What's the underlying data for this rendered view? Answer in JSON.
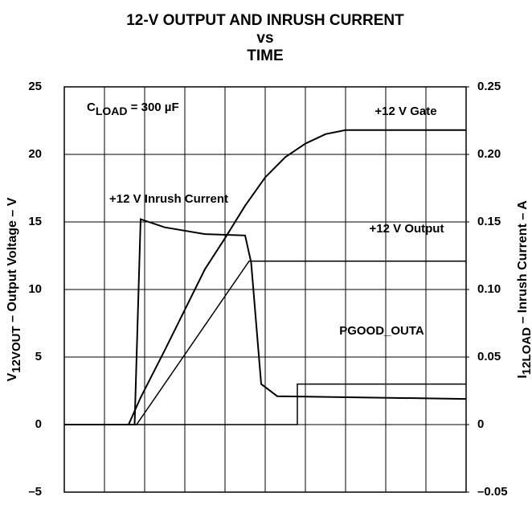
{
  "chart_data": {
    "type": "line",
    "title": [
      "12-V OUTPUT AND INRUSH CURRENT",
      "vs",
      "TIME"
    ],
    "y_label": {
      "main": "V",
      "sub": "12VOUT",
      "rest": " – Output Voltage – V"
    },
    "y2_label": {
      "main": "I",
      "sub": "12LOAD",
      "rest": " – Inrush Current – A"
    },
    "xlim": [
      0,
      10
    ],
    "xticks": [
      0,
      1,
      2,
      3,
      4,
      5,
      6,
      7,
      8,
      9,
      10
    ],
    "ylim": [
      -5,
      25
    ],
    "yticks": [
      {
        "value": -5,
        "label": "–5"
      },
      0,
      5,
      10,
      15,
      20,
      25
    ],
    "y2lim": [
      -0.05,
      0.25
    ],
    "y2ticks": [
      {
        "value": -0.05,
        "label": "–0.05"
      },
      0,
      0.05,
      {
        "value": 0.1,
        "label": "0.10"
      },
      0.15,
      {
        "value": 0.2,
        "label": "0.20"
      },
      0.25
    ],
    "grid": true,
    "series": [
      {
        "name": "+12 V Gate",
        "color": "#000000",
        "axis": "y",
        "x": [
          0,
          1.6,
          1.9,
          2.5,
          3,
          3.5,
          4,
          4.5,
          5,
          5.5,
          6,
          6.5,
          7,
          10
        ],
        "values": [
          0,
          0,
          2,
          5.5,
          8.5,
          11.5,
          13.8,
          16.2,
          18.3,
          19.8,
          20.8,
          21.5,
          21.8,
          21.8
        ]
      },
      {
        "name": "+12 V Output",
        "color": "#000000",
        "axis": "y",
        "x": [
          0,
          1.8,
          4.6,
          10
        ],
        "values": [
          0,
          0,
          12.1,
          12.1
        ]
      },
      {
        "name": "+12 V Inrush Current",
        "color": "#000000",
        "axis": "y2",
        "x": [
          0,
          1.75,
          1.9,
          2.5,
          3.5,
          4.5,
          4.65,
          4.9,
          5.3,
          10
        ],
        "values": [
          0,
          0,
          0.152,
          0.146,
          0.141,
          0.14,
          0.12,
          0.03,
          0.021,
          0.019
        ]
      },
      {
        "name": "PGOOD_OUTA",
        "color": "#000000",
        "axis": "y",
        "x": [
          0,
          5.8,
          5.8,
          10
        ],
        "values": [
          0,
          0,
          3,
          3
        ]
      }
    ],
    "annotations": [
      {
        "main": "C",
        "sub": "LOAD",
        "rest": " = 300 µF"
      }
    ]
  }
}
